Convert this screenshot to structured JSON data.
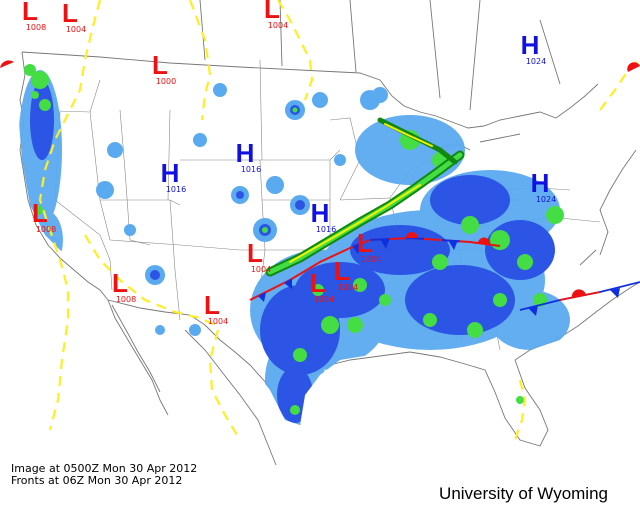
{
  "caption": {
    "image_time": "Image at 0500Z Mon 30 Apr 2012",
    "fronts_time": "Fronts at 06Z Mon 30 Apr 2012"
  },
  "credit": "University of Wyoming",
  "colors": {
    "high": "#1010e0",
    "low": "#ee1111",
    "trough": "#ffee22",
    "borders": "#777777",
    "radar_light": "#5aaaf0",
    "radar_blue": "#2c55e6",
    "radar_green": "#44dd44",
    "radar_dark_green": "#118811",
    "radar_yellow": "#f2f200",
    "cold_front": "#1030e0",
    "warm_front": "#ee1111"
  },
  "pressure_systems": [
    {
      "type": "L",
      "value": "1004"
    },
    {
      "type": "L",
      "value": "1004"
    },
    {
      "type": "L",
      "value": "1000"
    },
    {
      "type": "H",
      "value": "1024"
    },
    {
      "type": "H",
      "value": "1016"
    },
    {
      "type": "H",
      "value": "1016"
    },
    {
      "type": "L",
      "value": "1008"
    },
    {
      "type": "H",
      "value": "1016"
    },
    {
      "type": "L",
      "value": "1004"
    },
    {
      "type": "H",
      "value": "1024"
    },
    {
      "type": "L",
      "value": "1004"
    },
    {
      "type": "L",
      "value": "1008"
    },
    {
      "type": "L",
      "value": "1004"
    },
    {
      "type": "L",
      "value": "1004"
    },
    {
      "type": "L",
      "value": "1004"
    },
    {
      "type": "L",
      "value": "1008"
    }
  ]
}
